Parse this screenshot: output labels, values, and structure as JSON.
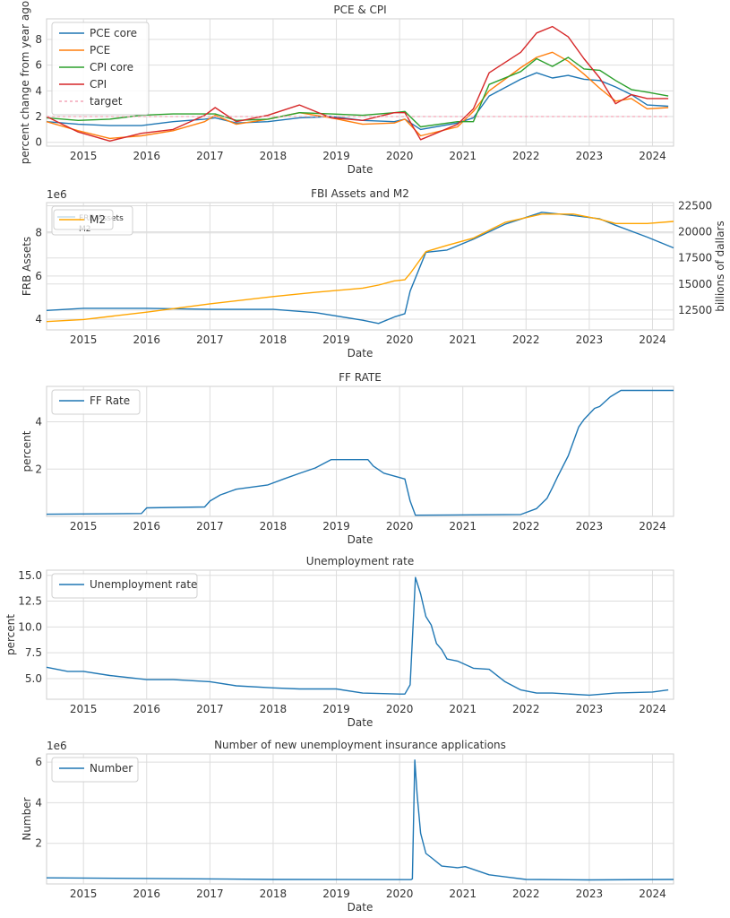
{
  "chart_data": [
    {
      "type": "line",
      "title": "PCE & CPI",
      "xlabel": "Date",
      "ylabel": "percent change from year ago",
      "xlim": [
        "2014-06",
        "2024-05"
      ],
      "ylim": [
        -0.3,
        9.6
      ],
      "y_ticks": [
        "0",
        "2",
        "4",
        "6",
        "8"
      ],
      "x_ticks": [
        "2015",
        "2016",
        "2017",
        "2018",
        "2019",
        "2020",
        "2021",
        "2022",
        "2023",
        "2024"
      ],
      "legend": "top-left",
      "grid": true,
      "x": [
        "2014-06",
        "2014-12",
        "2015-06",
        "2015-12",
        "2016-06",
        "2016-12",
        "2017-02",
        "2017-06",
        "2017-12",
        "2018-06",
        "2018-12",
        "2019-06",
        "2019-12",
        "2020-02",
        "2020-05",
        "2020-12",
        "2021-03",
        "2021-06",
        "2021-12",
        "2022-03",
        "2022-06",
        "2022-09",
        "2022-12",
        "2023-03",
        "2023-06",
        "2023-09",
        "2023-12",
        "2024-04"
      ],
      "series": [
        {
          "name": "PCE core",
          "color": "#1f77b4",
          "values": [
            1.6,
            1.4,
            1.3,
            1.3,
            1.6,
            1.8,
            1.9,
            1.5,
            1.6,
            1.9,
            2.0,
            1.7,
            1.6,
            1.8,
            1.0,
            1.5,
            1.9,
            3.6,
            4.9,
            5.4,
            5.0,
            5.2,
            4.9,
            4.8,
            4.3,
            3.7,
            2.9,
            2.8
          ]
        },
        {
          "name": "PCE",
          "color": "#ff7f0e",
          "values": [
            1.6,
            0.9,
            0.3,
            0.5,
            0.9,
            1.6,
            2.1,
            1.4,
            1.8,
            2.3,
            1.9,
            1.4,
            1.5,
            1.8,
            0.5,
            1.2,
            2.4,
            4.0,
            5.8,
            6.6,
            7.0,
            6.3,
            5.3,
            4.2,
            3.2,
            3.4,
            2.6,
            2.7
          ]
        },
        {
          "name": "CPI core",
          "color": "#2ca02c",
          "values": [
            1.9,
            1.7,
            1.8,
            2.1,
            2.2,
            2.2,
            2.2,
            1.7,
            1.8,
            2.3,
            2.2,
            2.1,
            2.3,
            2.4,
            1.2,
            1.6,
            1.6,
            4.5,
            5.5,
            6.5,
            5.9,
            6.6,
            5.7,
            5.6,
            4.8,
            4.1,
            3.9,
            3.6
          ]
        },
        {
          "name": "CPI",
          "color": "#d62728",
          "values": [
            2.0,
            0.8,
            0.1,
            0.7,
            1.0,
            2.1,
            2.7,
            1.6,
            2.1,
            2.9,
            1.9,
            1.7,
            2.3,
            2.3,
            0.2,
            1.4,
            2.6,
            5.4,
            7.0,
            8.5,
            9.0,
            8.2,
            6.5,
            5.0,
            3.0,
            3.7,
            3.4,
            3.4
          ]
        },
        {
          "name": "target",
          "color": "#f4a6b8",
          "dashed": true,
          "values": [
            2,
            2,
            2,
            2,
            2,
            2,
            2,
            2,
            2,
            2,
            2,
            2,
            2,
            2,
            2,
            2,
            2,
            2,
            2,
            2,
            2,
            2,
            2,
            2,
            2,
            2,
            2,
            2
          ]
        }
      ]
    },
    {
      "type": "line",
      "title": "FBI Assets and M2",
      "xlabel": "Date",
      "ylabel": "FRB Assets",
      "ylabel_right": "billions of dallars",
      "offset_text": "1e6",
      "xlim": [
        "2014-06",
        "2024-05"
      ],
      "ylim": [
        3.5,
        9.4
      ],
      "ylim_right": [
        10600,
        22800
      ],
      "y_ticks": [
        "4",
        "6",
        "8"
      ],
      "y_ticks_right": [
        "12500",
        "15000",
        "17500",
        "20000",
        "22500"
      ],
      "x_ticks": [
        "2015",
        "2016",
        "2017",
        "2018",
        "2019",
        "2020",
        "2021",
        "2022",
        "2023",
        "2024"
      ],
      "legend": "top-left",
      "legend_entries": [
        "FRB Assets",
        "M2"
      ],
      "legend_overlay": "M2",
      "grid": true,
      "x": [
        "2014-06",
        "2015-01",
        "2016-01",
        "2017-01",
        "2018-01",
        "2018-09",
        "2019-06",
        "2019-09",
        "2019-12",
        "2020-02",
        "2020-03",
        "2020-06",
        "2020-10",
        "2021-03",
        "2021-09",
        "2022-04",
        "2022-10",
        "2023-03",
        "2023-06",
        "2023-12",
        "2024-05"
      ],
      "series": [
        {
          "name": "FRB Assets",
          "color": "#1f77b4",
          "values": [
            4.4,
            4.5,
            4.5,
            4.45,
            4.45,
            4.3,
            3.95,
            3.8,
            4.1,
            4.25,
            5.3,
            7.1,
            7.2,
            7.7,
            8.4,
            8.95,
            8.8,
            8.65,
            8.35,
            7.8,
            7.3
          ]
        },
        {
          "name": "M2",
          "color": "#ffa500",
          "values": [
            11400,
            11600,
            12300,
            13100,
            13800,
            14200,
            14600,
            14900,
            15300,
            15400,
            16000,
            18100,
            18700,
            19400,
            20900,
            21700,
            21700,
            21200,
            20800,
            20800,
            21000
          ]
        }
      ]
    },
    {
      "type": "line",
      "title": "FF RATE",
      "xlabel": "Date",
      "ylabel": "percent",
      "xlim": [
        "2014-06",
        "2024-05"
      ],
      "ylim": [
        0,
        5.5
      ],
      "y_ticks": [
        "2",
        "4"
      ],
      "x_ticks": [
        "2015",
        "2016",
        "2017",
        "2018",
        "2019",
        "2020",
        "2021",
        "2022",
        "2023",
        "2024"
      ],
      "legend": "top-left",
      "grid": true,
      "x": [
        "2014-06",
        "2015-12",
        "2016-01",
        "2016-12",
        "2017-01",
        "2017-03",
        "2017-06",
        "2017-12",
        "2018-03",
        "2018-06",
        "2018-09",
        "2018-12",
        "2019-07",
        "2019-08",
        "2019-10",
        "2020-02",
        "2020-03",
        "2020-04",
        "2021-12",
        "2022-03",
        "2022-05",
        "2022-06",
        "2022-07",
        "2022-09",
        "2022-11",
        "2022-12",
        "2023-02",
        "2023-03",
        "2023-05",
        "2023-07",
        "2024-05"
      ],
      "series": [
        {
          "name": "FF Rate",
          "color": "#1f77b4",
          "values": [
            0.09,
            0.12,
            0.36,
            0.4,
            0.65,
            0.91,
            1.15,
            1.33,
            1.58,
            1.82,
            2.05,
            2.4,
            2.4,
            2.13,
            1.83,
            1.58,
            0.65,
            0.05,
            0.08,
            0.33,
            0.77,
            1.21,
            1.68,
            2.56,
            3.78,
            4.1,
            4.57,
            4.65,
            5.06,
            5.33,
            5.33
          ]
        }
      ]
    },
    {
      "type": "line",
      "title": "Unemployment rate",
      "xlabel": "Date",
      "ylabel": "percent",
      "xlim": [
        "2014-06",
        "2024-05"
      ],
      "ylim": [
        3.0,
        15.5
      ],
      "y_ticks": [
        "5.0",
        "7.5",
        "10.0",
        "12.5",
        "15.0"
      ],
      "x_ticks": [
        "2015",
        "2016",
        "2017",
        "2018",
        "2019",
        "2020",
        "2021",
        "2022",
        "2023",
        "2024"
      ],
      "legend": "top-left",
      "grid": true,
      "x": [
        "2014-06",
        "2014-10",
        "2015-01",
        "2015-06",
        "2016-01",
        "2016-06",
        "2017-01",
        "2017-06",
        "2018-01",
        "2018-06",
        "2019-01",
        "2019-06",
        "2020-01",
        "2020-02",
        "2020-03",
        "2020-04",
        "2020-05",
        "2020-06",
        "2020-07",
        "2020-08",
        "2020-09",
        "2020-10",
        "2020-12",
        "2021-03",
        "2021-06",
        "2021-09",
        "2021-12",
        "2022-03",
        "2022-06",
        "2023-01",
        "2023-06",
        "2024-01",
        "2024-04"
      ],
      "series": [
        {
          "name": "Unemployment rate",
          "color": "#1f77b4",
          "values": [
            6.1,
            5.7,
            5.7,
            5.3,
            4.9,
            4.9,
            4.7,
            4.3,
            4.1,
            4.0,
            4.0,
            3.6,
            3.5,
            3.5,
            4.4,
            14.8,
            13.2,
            11.0,
            10.2,
            8.4,
            7.8,
            6.9,
            6.7,
            6.0,
            5.9,
            4.7,
            3.9,
            3.6,
            3.6,
            3.4,
            3.6,
            3.7,
            3.9
          ]
        }
      ]
    },
    {
      "type": "line",
      "title": "Number of new unemployment insurance applications",
      "xlabel": "Date",
      "ylabel": "Number",
      "offset_text": "1e6",
      "xlim": [
        "2014-06",
        "2024-05"
      ],
      "ylim": [
        0,
        6.4
      ],
      "y_ticks": [
        "2",
        "4",
        "6"
      ],
      "x_ticks": [
        "2015",
        "2016",
        "2017",
        "2018",
        "2019",
        "2020",
        "2021",
        "2022",
        "2023",
        "2024"
      ],
      "legend": "top-left",
      "grid": true,
      "x": [
        "2014-06",
        "2016-01",
        "2018-01",
        "2020-03-07",
        "2020-03-14",
        "2020-03-21",
        "2020-03-28",
        "2020-04-11",
        "2020-05-01",
        "2020-06-01",
        "2020-07-01",
        "2020-09-01",
        "2020-12-01",
        "2021-01-15",
        "2021-06-01",
        "2021-09-01",
        "2022-01-01",
        "2023-01-01",
        "2024-05"
      ],
      "series": [
        {
          "name": "Number",
          "color": "#1f77b4",
          "values": [
            0.3,
            0.27,
            0.22,
            0.21,
            0.25,
            3.3,
            6.1,
            4.4,
            2.5,
            1.5,
            1.3,
            0.88,
            0.8,
            0.85,
            0.45,
            0.35,
            0.22,
            0.2,
            0.22
          ]
        }
      ]
    }
  ]
}
